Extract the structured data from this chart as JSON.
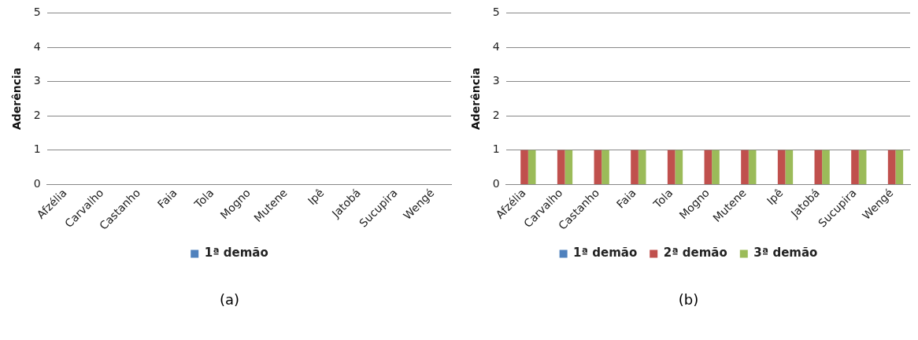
{
  "chart_data": [
    {
      "type": "bar",
      "ylabel": "Aderência",
      "categories": [
        "Afzélia",
        "Carvalho",
        "Castanho",
        "Faia",
        "Tola",
        "Mogno",
        "Mutene",
        "Ipê",
        "Jatobá",
        "Sucupira",
        "Wengé"
      ],
      "series": [
        {
          "name": "1ª demão",
          "color": "#4f81bd",
          "values": [
            0,
            0,
            0,
            0,
            0,
            0,
            0,
            0,
            0,
            0,
            0
          ]
        }
      ],
      "ylim": [
        0,
        5
      ],
      "yticks": [
        0,
        1,
        2,
        3,
        4,
        5
      ],
      "grid": "y",
      "legend": "bottom",
      "annotations": [
        "(a)"
      ]
    },
    {
      "type": "bar",
      "ylabel": "Aderência",
      "categories": [
        "Afzélia",
        "Carvalho",
        "Castanho",
        "Faia",
        "Tola",
        "Mogno",
        "Mutene",
        "Ipê",
        "Jatobá",
        "Sucupira",
        "Wengé"
      ],
      "series": [
        {
          "name": "1ª demão",
          "color": "#4f81bd",
          "values": [
            0,
            0,
            0,
            0,
            0,
            0,
            0,
            0,
            0,
            0,
            0
          ]
        },
        {
          "name": "2ª demão",
          "color": "#c0504d",
          "values": [
            1,
            1,
            1,
            1,
            1,
            1,
            1,
            1,
            1,
            1,
            1
          ]
        },
        {
          "name": "3ª demão",
          "color": "#9bbb59",
          "values": [
            1,
            1,
            1,
            1,
            1,
            1,
            1,
            1,
            1,
            1,
            1
          ]
        }
      ],
      "ylim": [
        0,
        5
      ],
      "yticks": [
        0,
        1,
        2,
        3,
        4,
        5
      ],
      "grid": "y",
      "legend": "bottom",
      "annotations": [
        "(b)"
      ]
    }
  ]
}
